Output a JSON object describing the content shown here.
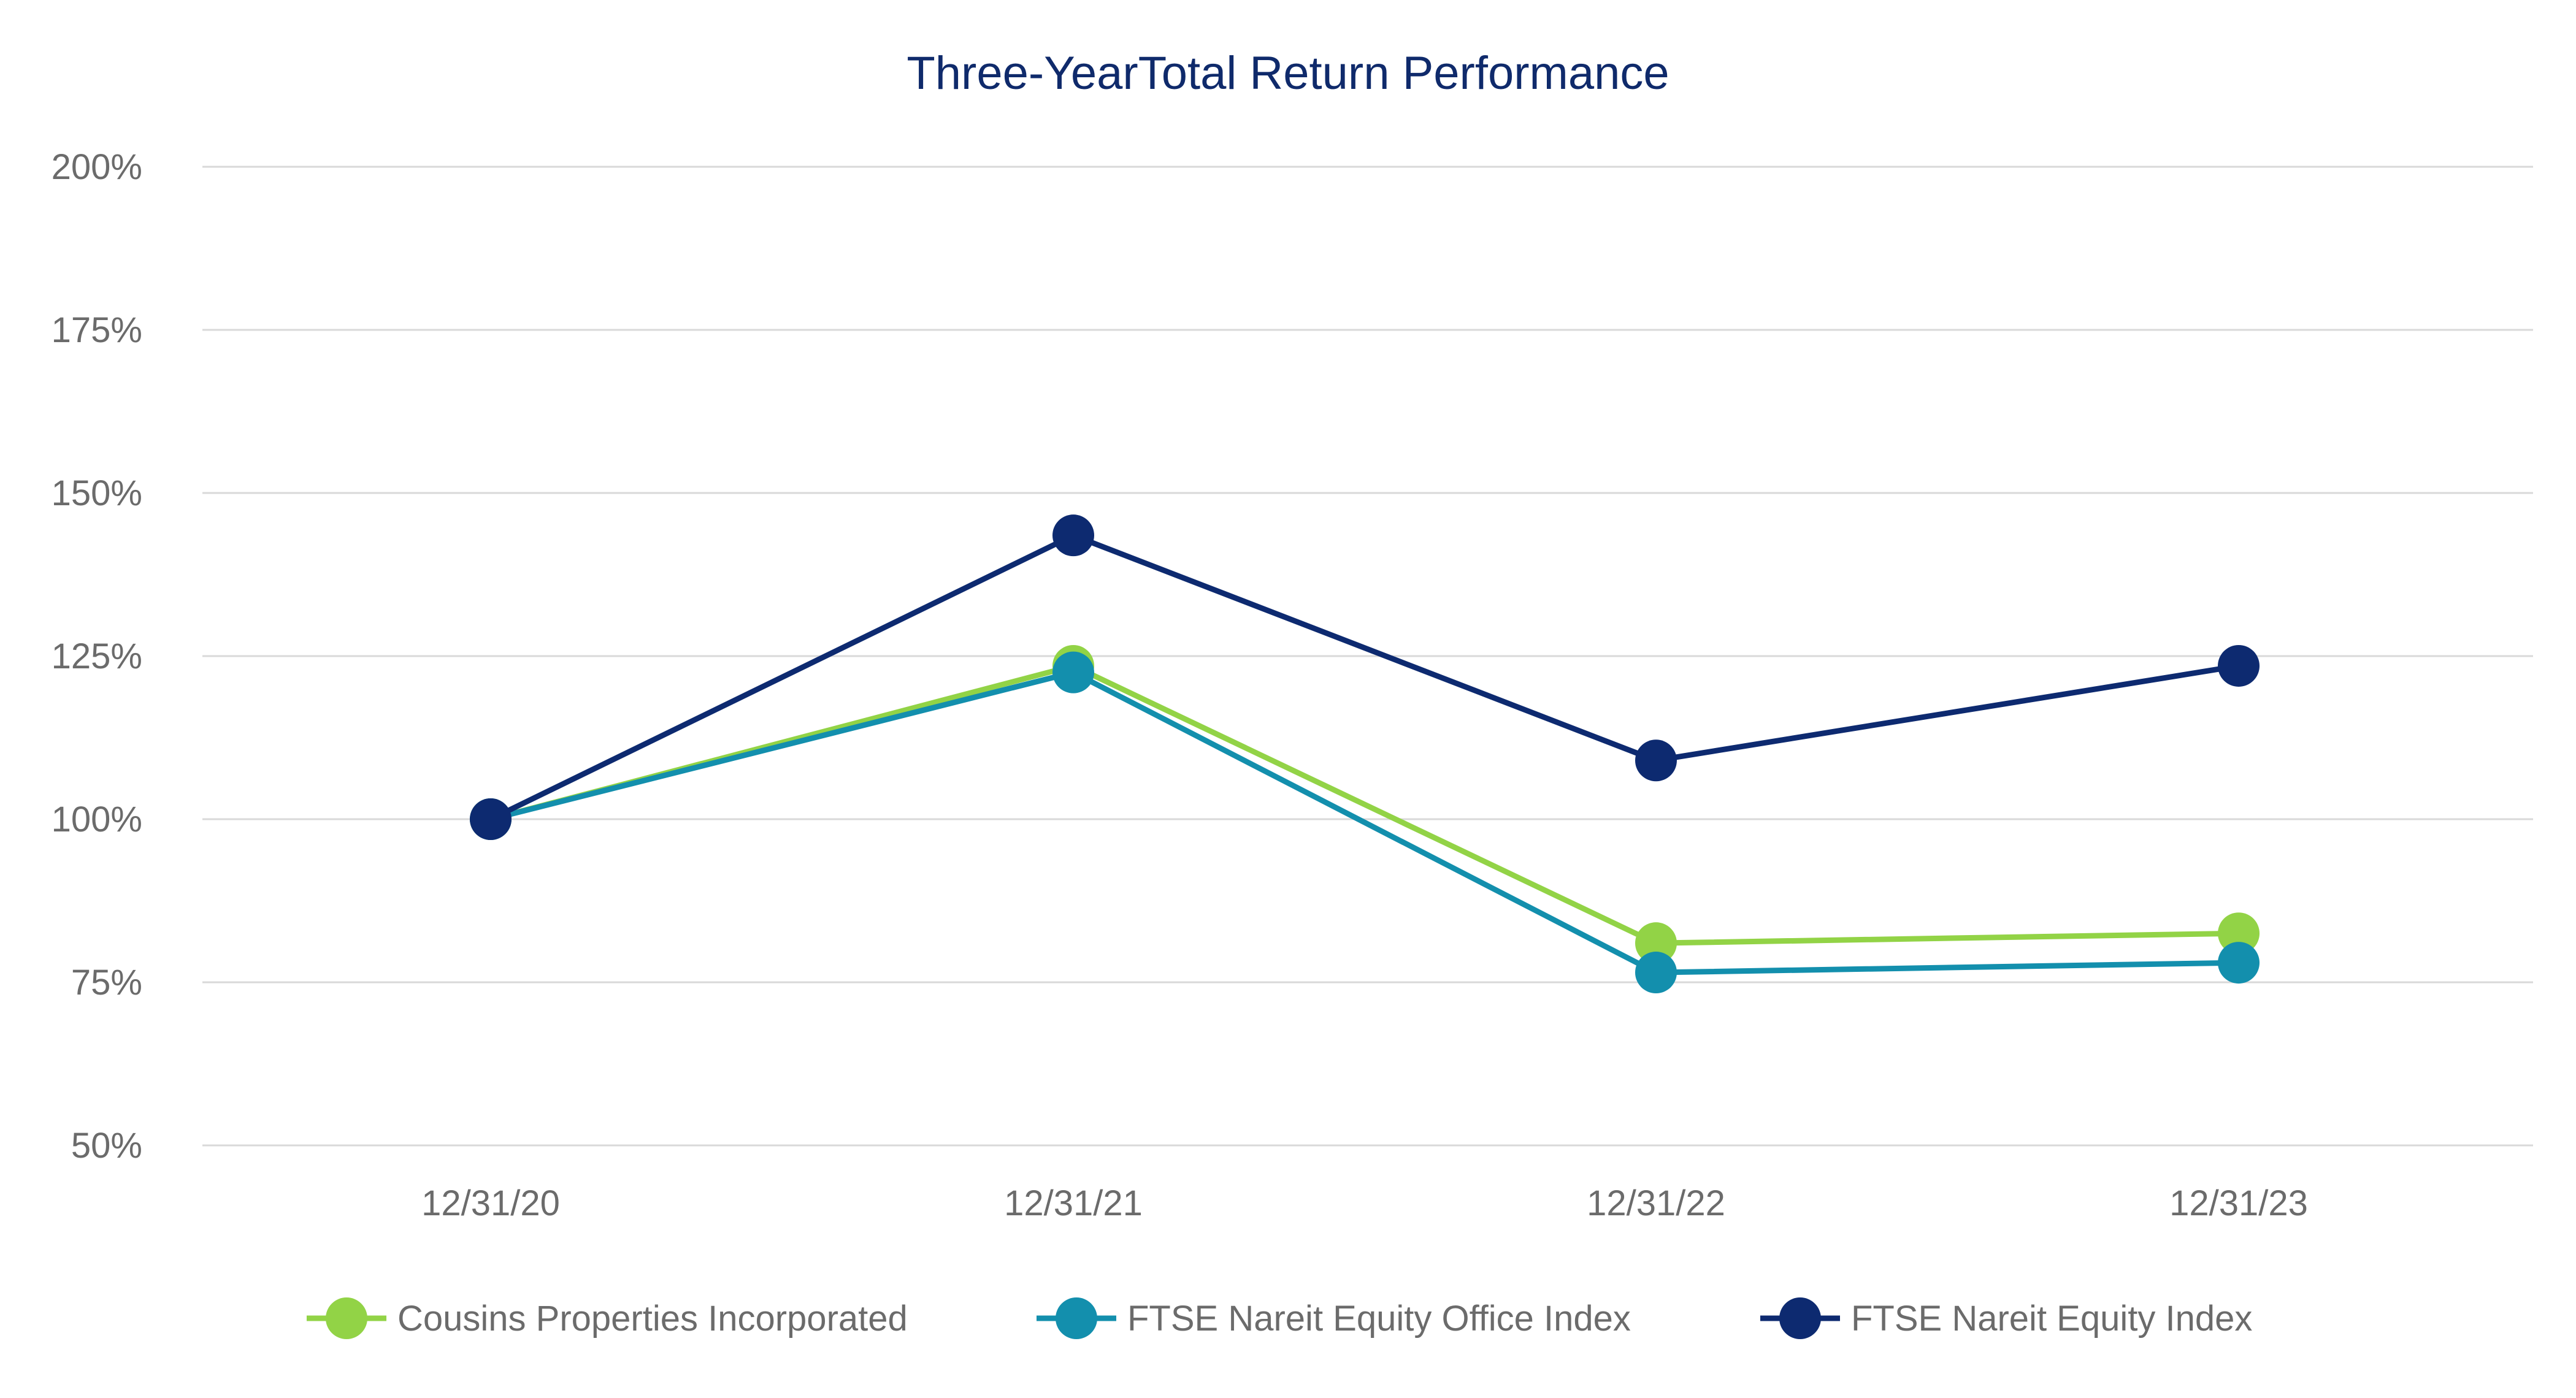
{
  "chart_data": {
    "type": "line",
    "title": "Three-YearTotal Return Performance",
    "xlabel": "",
    "ylabel": "",
    "categories": [
      "12/31/20",
      "12/31/21",
      "12/31/22",
      "12/31/23"
    ],
    "ylim": [
      50,
      200
    ],
    "yticks": [
      50,
      75,
      100,
      125,
      150,
      175,
      200
    ],
    "ytick_labels": [
      "50%",
      "75%",
      "100%",
      "125%",
      "150%",
      "175%",
      "200%"
    ],
    "grid": true,
    "legend_position": "bottom",
    "series": [
      {
        "name": "Cousins Properties Incorporated",
        "color": "#92d346",
        "values": [
          100,
          123.5,
          81,
          82.5
        ]
      },
      {
        "name": "FTSE Nareit Equity Office Index",
        "color": "#138fad",
        "values": [
          100,
          122.5,
          76.5,
          78
        ]
      },
      {
        "name": "FTSE Nareit Equity Index",
        "color": "#0d2a70",
        "values": [
          100,
          143.5,
          109,
          123.5
        ]
      }
    ]
  }
}
